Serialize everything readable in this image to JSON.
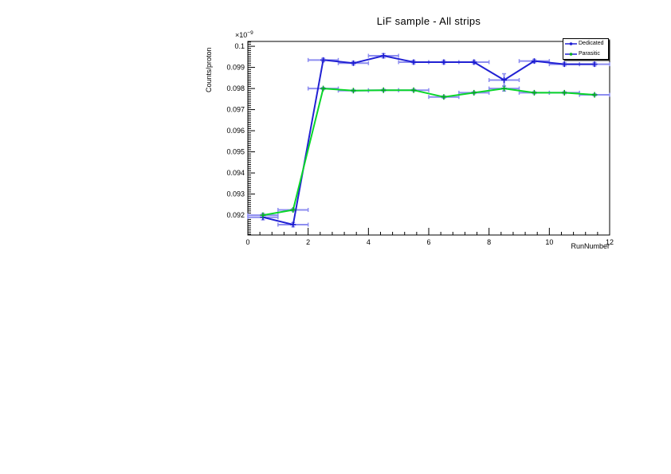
{
  "window": {
    "background": "#ffffff"
  },
  "chart_data": {
    "type": "line",
    "title": "LiF sample - All strips",
    "xlabel": "RunNumber",
    "ylabel": "Counts/proton",
    "y_exponent": {
      "base": "×10",
      "power": "−9"
    },
    "xlim": [
      0,
      12
    ],
    "ylim": [
      0.09106,
      0.10023
    ],
    "x_major_ticks": [
      0,
      2,
      4,
      6,
      8,
      10,
      12
    ],
    "x_minor_step": 0.4,
    "y_major_ticks": [
      0.092,
      0.093,
      0.094,
      0.095,
      0.096,
      0.097,
      0.098,
      0.099,
      0.1
    ],
    "y_major_tick_labels": [
      "0.092",
      "0.093",
      "0.094",
      "0.095",
      "0.096",
      "0.097",
      "0.098",
      "0.099",
      "0.1"
    ],
    "y_minor_step": 0.0001,
    "grid": false,
    "legend_position": "top-right",
    "x": [
      0.5,
      1.5,
      2.5,
      3.5,
      4.5,
      5.5,
      6.5,
      7.5,
      8.5,
      9.5,
      10.5,
      11.5
    ],
    "xerr": 0.5,
    "series": [
      {
        "name": "Dedicated",
        "line_color": "#2121d3",
        "marker_color": "#1b1bd0",
        "errorbar_color": "#8d8df0",
        "values": [
          0.0919,
          0.09155,
          0.09935,
          0.0992,
          0.09955,
          0.09925,
          0.09925,
          0.09925,
          0.0984,
          0.0993,
          0.09915,
          0.09915
        ],
        "yerr": [
          0.00012,
          0.0001,
          8e-05,
          8e-05,
          0.0001,
          8e-05,
          8e-05,
          8e-05,
          0.0003,
          8e-05,
          8e-05,
          8e-05
        ]
      },
      {
        "name": "Parasitic",
        "line_color": "#0ad62a",
        "marker_color": "#00ad1d",
        "errorbar_color": "#8d8df0",
        "legend_line_color": "#2121d3",
        "values": [
          0.092,
          0.09225,
          0.098,
          0.0979,
          0.09792,
          0.09792,
          0.0976,
          0.0978,
          0.098,
          0.0978,
          0.0978,
          0.0977
        ],
        "yerr": [
          8e-05,
          6e-05,
          5e-05,
          5e-05,
          5e-05,
          5e-05,
          6e-05,
          5e-05,
          0.00012,
          5e-05,
          5e-05,
          5e-05
        ]
      }
    ]
  }
}
